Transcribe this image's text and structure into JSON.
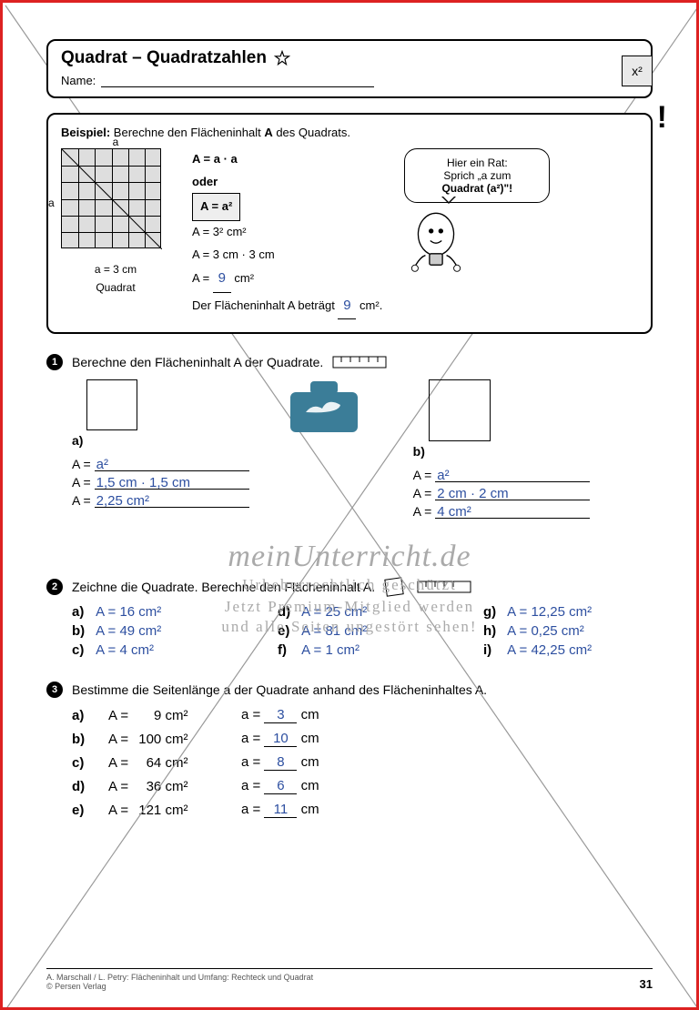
{
  "colors": {
    "frame": "#d22",
    "hand": "#2d4fa0",
    "wm": "#aaaaaa",
    "briefcase": "#3b7d98"
  },
  "header": {
    "title": "Quadrat – Quadratzahlen",
    "name_label": "Name:",
    "badge": "x²"
  },
  "example": {
    "intro_bold": "Beispiel:",
    "intro_rest": " Berechne den Flächeninhalt ",
    "intro_A": "A",
    "intro_end": " des Quadrats.",
    "top_label": "a",
    "left_label": "a",
    "under_sq": "a = 3 cm",
    "caption": "Quadrat",
    "formula1": "A = a · a",
    "oder": "oder",
    "formula_boxed": "A = a²",
    "line3": "A = 3² cm²",
    "line4": "A = 3 cm · 3 cm",
    "line5_pre": "A = ",
    "line5_val": "9",
    "line5_post": " cm²",
    "line6_pre": "Der Flächeninhalt A beträgt ",
    "line6_val": "9",
    "line6_post": " cm².",
    "speech_l1": "Hier ein Rat:",
    "speech_l2": "Sprich „a zum",
    "speech_l3": "Quadrat (a²)\"!"
  },
  "task1": {
    "num": "1",
    "text": "Berechne den Flächeninhalt A der Quadrate.",
    "a": {
      "label": "a)",
      "rows": [
        {
          "pre": "A = ",
          "val": "a²"
        },
        {
          "pre": "A = ",
          "val": "1,5 cm · 1,5 cm"
        },
        {
          "pre": "A = ",
          "val": "2,25 cm²"
        }
      ]
    },
    "b": {
      "label": "b)",
      "rows": [
        {
          "pre": "A = ",
          "val": "a²"
        },
        {
          "pre": "A = ",
          "val": "2 cm · 2 cm"
        },
        {
          "pre": "A = ",
          "val": "4 cm²"
        }
      ]
    }
  },
  "watermark": {
    "brand": "meinUnterricht.de",
    "l1": "Urheberrechtlich geschützt",
    "l2": "Jetzt Premium-Mitglied werden",
    "l3": "und alle Seiten ungestört sehen!"
  },
  "task2": {
    "num": "2",
    "text": "Zeichne die Quadrate. Berechne den Flächeninhalt A.",
    "items": [
      {
        "k": "a)",
        "v": "A = 16 cm²"
      },
      {
        "k": "d)",
        "v": "A = 25 cm²"
      },
      {
        "k": "g)",
        "v": "A = 12,25 cm²"
      },
      {
        "k": "b)",
        "v": "A = 49 cm²"
      },
      {
        "k": "e)",
        "v": "A = 81 cm²"
      },
      {
        "k": "h)",
        "v": "A = 0,25 cm²"
      },
      {
        "k": "c)",
        "v": "A = 4 cm²"
      },
      {
        "k": "f)",
        "v": "A = 1 cm²"
      },
      {
        "k": "i)",
        "v": "A = 42,25 cm²"
      }
    ]
  },
  "task3": {
    "num": "3",
    "text": "Bestimme die Seitenlänge a der Quadrate anhand des Flächeninhaltes A.",
    "rows": [
      {
        "k": "a)",
        "A": "9",
        "a": "3"
      },
      {
        "k": "b)",
        "A": "100",
        "a": "10"
      },
      {
        "k": "c)",
        "A": "64",
        "a": "8"
      },
      {
        "k": "d)",
        "A": "36",
        "a": "6"
      },
      {
        "k": "e)",
        "A": "121",
        "a": "11"
      }
    ]
  },
  "footer": {
    "credit_l1": "A. Marschall / L. Petry: Flächeninhalt und Umfang: Rechteck und Quadrat",
    "credit_l2": "© Persen Verlag",
    "page": "31"
  }
}
